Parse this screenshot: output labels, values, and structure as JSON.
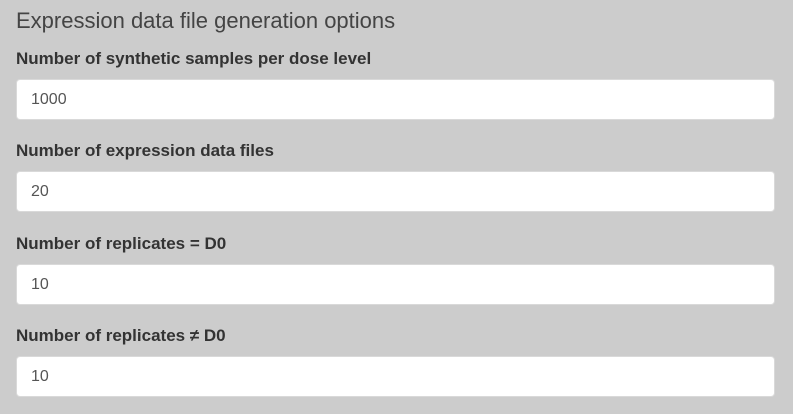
{
  "section": {
    "title": "Expression data file generation options"
  },
  "fields": [
    {
      "label": "Number of synthetic samples per dose level",
      "value": "1000"
    },
    {
      "label": "Number of expression data files",
      "value": "20"
    },
    {
      "label": "Number of replicates = D0",
      "value": "10"
    },
    {
      "label": "Number of replicates ≠ D0",
      "value": "10"
    }
  ]
}
